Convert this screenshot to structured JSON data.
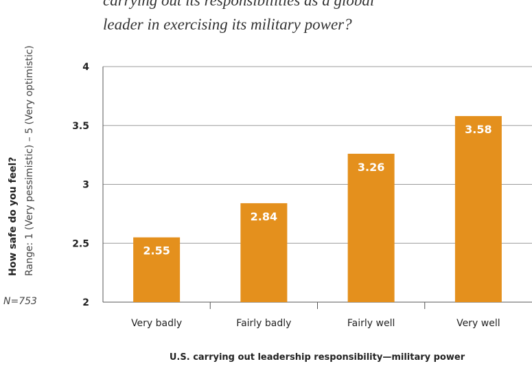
{
  "chart_data": {
    "type": "bar",
    "title": [
      "carrying out its responsibilities as a global",
      "leader in exercising its military power?"
    ],
    "y_label": "How safe do you feel?",
    "y_sublabel": "Range: 1 (Very pessimistic) – 5 (Very optimistic)",
    "x_label": "U.S. carrying out leadership responsibility—military power",
    "note": "N=753",
    "categories": [
      "Very badly",
      "Fairly badly",
      "Fairly well",
      "Very well"
    ],
    "values": [
      2.55,
      2.84,
      3.26,
      3.58
    ],
    "color": "#e4901d",
    "ylim": [
      2,
      4
    ],
    "yticks": [
      2,
      2.5,
      3,
      3.5,
      4
    ],
    "grid": true
  }
}
